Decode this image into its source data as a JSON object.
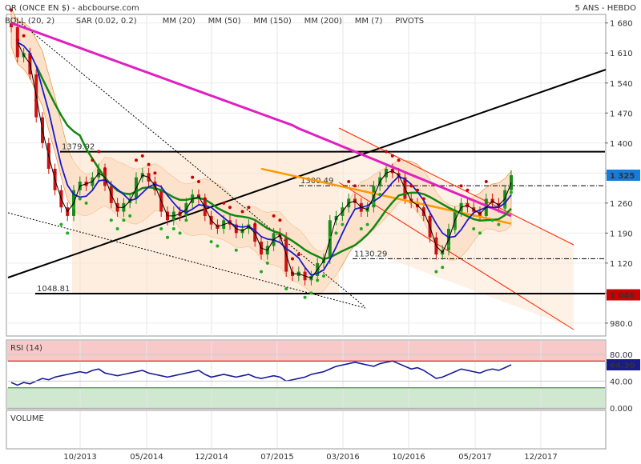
{
  "header": {
    "title": "OR (ONCE EN $) - abcbourse.com",
    "period": "5 ANS - HEBDO"
  },
  "legend": [
    {
      "label": "BOLL (20, 2)",
      "color": "#e8903a"
    },
    {
      "label": "SAR (0.02, 0.2)",
      "color": "#cc0000"
    },
    {
      "label": "MM (20)",
      "color": "#1a1acc"
    },
    {
      "label": "MM (50)",
      "color": "#118811"
    },
    {
      "label": "MM (150)",
      "color": "#ff9900"
    },
    {
      "label": "MM (200)",
      "color": "#e020c0"
    },
    {
      "label": "MM (7)",
      "color": "#000000"
    },
    {
      "label": "PIVOTS",
      "color": "#333333"
    }
  ],
  "chart_data": [
    {
      "type": "line",
      "name": "price",
      "x_ticks": [
        "10/2013",
        "05/2014",
        "12/2014",
        "07/2015",
        "03/2016",
        "10/2016",
        "05/2017",
        "12/2017"
      ],
      "y_ticks": [
        980,
        1050,
        1120,
        1190,
        1260,
        1330,
        1400,
        1470,
        1540,
        1610,
        1680
      ],
      "y_tick_labels": [
        "980.0",
        "",
        "1 120",
        "1 190",
        "1 260",
        "",
        "1 400",
        "1 470",
        "1 540",
        "1 610",
        "1 680"
      ],
      "ylim": [
        950,
        1700
      ],
      "horizontal_levels": [
        {
          "value": 1379.92,
          "label": "1379.92",
          "style": "solid"
        },
        {
          "value": 1048.81,
          "label": "1048.81",
          "style": "solid"
        },
        {
          "value": 1300.49,
          "label": "1300.49",
          "style": "dashdot"
        },
        {
          "value": 1130.29,
          "label": "1130.29",
          "style": "dashdot"
        }
      ],
      "last_value_badges": [
        {
          "value": 1325,
          "label": "1 325",
          "color": "#1a7ad8"
        },
        {
          "value": 1046,
          "label": "1 046",
          "color": "#cc0000"
        }
      ],
      "close_series": [
        1670,
        1600,
        1610,
        1560,
        1460,
        1400,
        1340,
        1290,
        1250,
        1230,
        1290,
        1310,
        1300,
        1320,
        1340,
        1300,
        1260,
        1240,
        1260,
        1270,
        1320,
        1330,
        1310,
        1290,
        1240,
        1220,
        1240,
        1230,
        1260,
        1280,
        1270,
        1230,
        1210,
        1200,
        1220,
        1210,
        1190,
        1200,
        1210,
        1170,
        1140,
        1160,
        1190,
        1180,
        1100,
        1090,
        1100,
        1080,
        1090,
        1120,
        1130,
        1220,
        1230,
        1250,
        1270,
        1260,
        1240,
        1250,
        1300,
        1320,
        1340,
        1330,
        1320,
        1270,
        1260,
        1250,
        1230,
        1180,
        1140,
        1150,
        1200,
        1240,
        1260,
        1250,
        1240,
        1230,
        1270,
        1260,
        1250,
        1290,
        1325
      ]
    },
    {
      "type": "line",
      "name": "RSI (14)",
      "y_ticks": [
        0,
        40,
        80
      ],
      "y_tick_labels": [
        "0.000",
        "40.00",
        "80.00"
      ],
      "ylim": [
        0,
        100
      ],
      "last_value": 64.3,
      "last_value_label": "64.30",
      "values": [
        38,
        34,
        38,
        36,
        40,
        44,
        42,
        46,
        48,
        50,
        52,
        54,
        52,
        56,
        58,
        52,
        50,
        48,
        50,
        52,
        54,
        56,
        52,
        50,
        48,
        46,
        48,
        50,
        52,
        54,
        56,
        50,
        46,
        48,
        50,
        48,
        46,
        48,
        50,
        46,
        44,
        46,
        48,
        46,
        40,
        42,
        44,
        46,
        50,
        52,
        54,
        58,
        62,
        64,
        66,
        68,
        66,
        64,
        62,
        66,
        68,
        70,
        66,
        62,
        58,
        60,
        56,
        50,
        44,
        46,
        50,
        54,
        58,
        56,
        54,
        52,
        56,
        58,
        56,
        60,
        64.3
      ]
    },
    {
      "type": "bar",
      "name": "VOLUME",
      "values": []
    }
  ]
}
